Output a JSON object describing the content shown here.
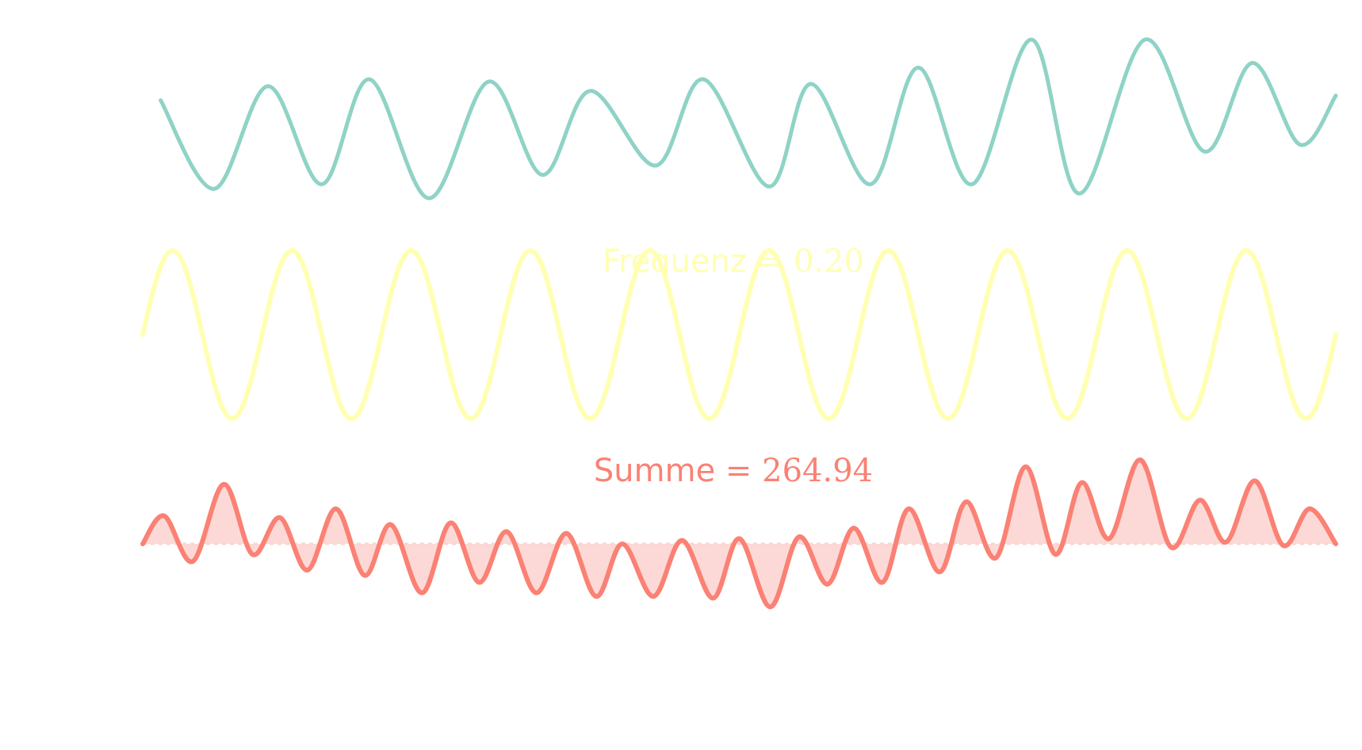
{
  "chart_data": [
    {
      "type": "line",
      "name": "signal",
      "color": "#8fd3c6",
      "x_range": [
        0,
        10
      ],
      "y_range": [
        -1.8,
        1.6
      ],
      "baseline": 0,
      "series": [
        {
          "x_step": 0.5,
          "peaks_x": [
            0.15,
            1.05,
            1.9,
            2.9,
            3.75,
            4.7,
            5.6,
            6.5,
            7.45,
            8.4,
            9.3
          ],
          "values": [
            [
              0.15,
              0.3
            ],
            [
              0.6,
              -1.6
            ],
            [
              1.05,
              0.6
            ],
            [
              1.5,
              -1.5
            ],
            [
              1.9,
              0.75
            ],
            [
              2.4,
              -1.8
            ],
            [
              2.9,
              0.7
            ],
            [
              3.35,
              -1.3
            ],
            [
              3.75,
              0.5
            ],
            [
              4.3,
              -1.1
            ],
            [
              4.7,
              0.75
            ],
            [
              5.25,
              -1.55
            ],
            [
              5.6,
              0.65
            ],
            [
              6.1,
              -1.5
            ],
            [
              6.5,
              1.0
            ],
            [
              6.95,
              -1.5
            ],
            [
              7.45,
              1.6
            ],
            [
              7.85,
              -1.7
            ],
            [
              8.4,
              1.6
            ],
            [
              8.9,
              -0.8
            ],
            [
              9.3,
              1.1
            ],
            [
              9.7,
              -0.65
            ],
            [
              10.0,
              0.4
            ]
          ]
        }
      ]
    },
    {
      "type": "line",
      "name": "reference",
      "color": "#ffffb3",
      "x_range": [
        0,
        10
      ],
      "y_range": [
        -1,
        1
      ],
      "frequency": 1.0,
      "amplitude": 1.0,
      "annotation_prefix": "Frequenz",
      "annotation_value": "0.20"
    },
    {
      "type": "area",
      "name": "product",
      "color": "#fa8174",
      "fill": "#fcd5d2",
      "x_range": [
        0,
        10
      ],
      "y_range": [
        -1.8,
        2.4
      ],
      "annotation_prefix": "Summe",
      "annotation_value": "264.94",
      "values": [
        [
          0.0,
          0.0
        ],
        [
          0.18,
          0.8
        ],
        [
          0.42,
          -0.5
        ],
        [
          0.68,
          1.7
        ],
        [
          0.92,
          -0.3
        ],
        [
          1.15,
          0.75
        ],
        [
          1.38,
          -0.75
        ],
        [
          1.62,
          1.0
        ],
        [
          1.86,
          -0.9
        ],
        [
          2.08,
          0.55
        ],
        [
          2.34,
          -1.4
        ],
        [
          2.58,
          0.6
        ],
        [
          2.82,
          -1.1
        ],
        [
          3.05,
          0.35
        ],
        [
          3.3,
          -1.4
        ],
        [
          3.55,
          0.3
        ],
        [
          3.8,
          -1.5
        ],
        [
          4.02,
          0.0
        ],
        [
          4.28,
          -1.5
        ],
        [
          4.52,
          0.1
        ],
        [
          4.78,
          -1.55
        ],
        [
          5.0,
          0.15
        ],
        [
          5.26,
          -1.8
        ],
        [
          5.5,
          0.2
        ],
        [
          5.74,
          -1.15
        ],
        [
          5.96,
          0.45
        ],
        [
          6.2,
          -1.1
        ],
        [
          6.42,
          1.0
        ],
        [
          6.68,
          -0.8
        ],
        [
          6.9,
          1.2
        ],
        [
          7.15,
          -0.4
        ],
        [
          7.4,
          2.2
        ],
        [
          7.65,
          -0.3
        ],
        [
          7.87,
          1.75
        ],
        [
          8.1,
          0.15
        ],
        [
          8.36,
          2.4
        ],
        [
          8.62,
          -0.1
        ],
        [
          8.86,
          1.25
        ],
        [
          9.08,
          0.05
        ],
        [
          9.32,
          1.8
        ],
        [
          9.56,
          -0.05
        ],
        [
          9.78,
          1.0
        ],
        [
          10.0,
          0.0
        ]
      ]
    }
  ]
}
